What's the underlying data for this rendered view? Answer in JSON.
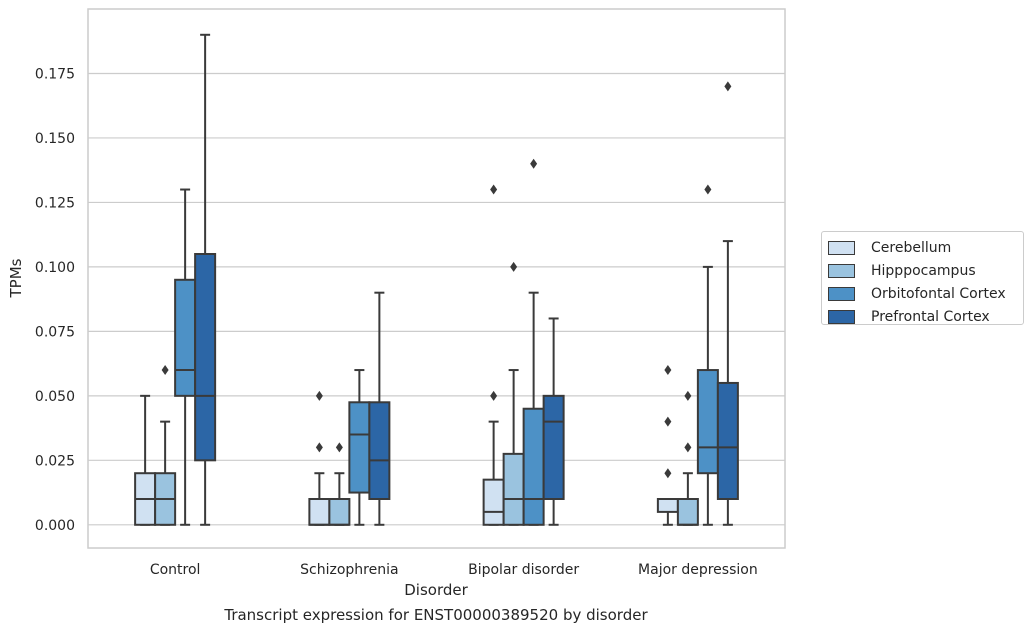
{
  "chart_data": {
    "type": "boxplot",
    "title": "",
    "xlabel": "Disorder",
    "ylabel": "TPMs",
    "caption": "Transcript expression for ENST00000389520 by disorder",
    "ylim": [
      -0.009,
      0.2
    ],
    "yticks": [
      "0.000",
      "0.025",
      "0.050",
      "0.075",
      "0.100",
      "0.125",
      "0.150",
      "0.175"
    ],
    "categories": [
      "Control",
      "Schizophrenia",
      "Bipolar disorder",
      "Major depression"
    ],
    "grid": "horizontal",
    "legend_position": "right",
    "colors": {
      "Cerebellum": "#d0e1f2",
      "Hipppocampus": "#9ac3df",
      "Orbitofontal Cortex": "#4d91c6",
      "Prefrontal Cortex": "#2c66a6",
      "line": "#3a3a3a",
      "grid": "#cccccc"
    },
    "series": [
      {
        "name": "Cerebellum",
        "boxes": [
          {
            "whislo": 0.0,
            "q1": 0.0,
            "med": 0.01,
            "q3": 0.02,
            "whishi": 0.05,
            "fliers": []
          },
          {
            "whislo": 0.0,
            "q1": 0.0,
            "med": 0.0,
            "q3": 0.01,
            "whishi": 0.02,
            "fliers": [
              0.03,
              0.05
            ]
          },
          {
            "whislo": 0.0,
            "q1": 0.0,
            "med": 0.005,
            "q3": 0.0175,
            "whishi": 0.04,
            "fliers": [
              0.05,
              0.13
            ]
          },
          {
            "whislo": 0.0,
            "q1": 0.005,
            "med": 0.01,
            "q3": 0.01,
            "whishi": 0.01,
            "fliers": [
              0.02,
              0.04,
              0.06
            ]
          }
        ]
      },
      {
        "name": "Hipppocampus",
        "boxes": [
          {
            "whislo": 0.0,
            "q1": 0.0,
            "med": 0.01,
            "q3": 0.02,
            "whishi": 0.04,
            "fliers": [
              0.06
            ]
          },
          {
            "whislo": 0.0,
            "q1": 0.0,
            "med": 0.0,
            "q3": 0.01,
            "whishi": 0.02,
            "fliers": [
              0.03
            ]
          },
          {
            "whislo": 0.0,
            "q1": 0.0,
            "med": 0.01,
            "q3": 0.0275,
            "whishi": 0.06,
            "fliers": [
              0.1
            ]
          },
          {
            "whislo": 0.0,
            "q1": 0.0,
            "med": 0.0,
            "q3": 0.01,
            "whishi": 0.02,
            "fliers": [
              0.03,
              0.05
            ]
          }
        ]
      },
      {
        "name": "Orbitofontal Cortex",
        "boxes": [
          {
            "whislo": 0.0,
            "q1": 0.05,
            "med": 0.06,
            "q3": 0.095,
            "whishi": 0.13,
            "fliers": []
          },
          {
            "whislo": 0.0,
            "q1": 0.0125,
            "med": 0.035,
            "q3": 0.0475,
            "whishi": 0.06,
            "fliers": []
          },
          {
            "whislo": 0.0,
            "q1": 0.0,
            "med": 0.01,
            "q3": 0.045,
            "whishi": 0.09,
            "fliers": [
              0.14
            ]
          },
          {
            "whislo": 0.0,
            "q1": 0.02,
            "med": 0.03,
            "q3": 0.06,
            "whishi": 0.1,
            "fliers": [
              0.13
            ]
          }
        ]
      },
      {
        "name": "Prefrontal Cortex",
        "boxes": [
          {
            "whislo": 0.0,
            "q1": 0.025,
            "med": 0.05,
            "q3": 0.105,
            "whishi": 0.19,
            "fliers": []
          },
          {
            "whislo": 0.0,
            "q1": 0.01,
            "med": 0.025,
            "q3": 0.0475,
            "whishi": 0.09,
            "fliers": []
          },
          {
            "whislo": 0.0,
            "q1": 0.01,
            "med": 0.04,
            "q3": 0.05,
            "whishi": 0.08,
            "fliers": []
          },
          {
            "whislo": 0.0,
            "q1": 0.01,
            "med": 0.03,
            "q3": 0.055,
            "whishi": 0.11,
            "fliers": [
              0.17
            ]
          }
        ]
      }
    ]
  }
}
